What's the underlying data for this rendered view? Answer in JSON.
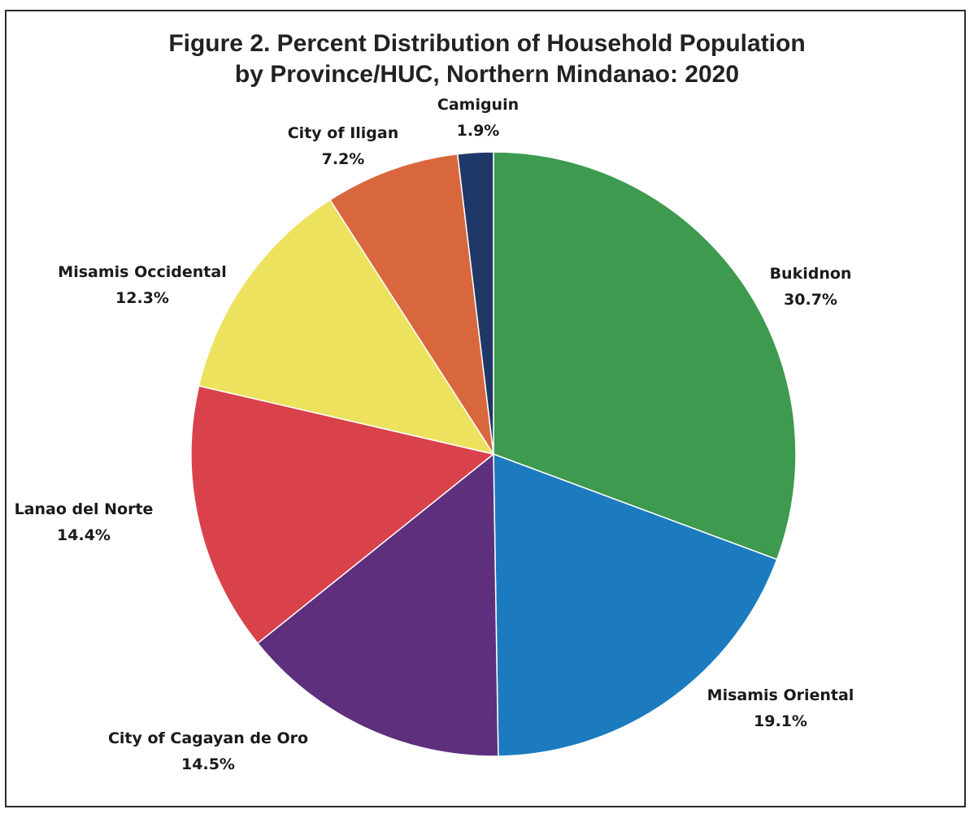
{
  "chart_data": {
    "type": "pie",
    "title_line1": "Figure 2. Percent Distribution of Household Population",
    "title_line2": "by Province/HUC, Northern Mindanao: 2020",
    "slices": [
      {
        "label": "Bukidnon",
        "value": 30.7,
        "display": "30.7%",
        "color": "#3d9a4e"
      },
      {
        "label": "Misamis Oriental",
        "value": 19.1,
        "display": "19.1%",
        "color": "#1c7bbf"
      },
      {
        "label": "City of Cagayan de Oro",
        "value": 14.5,
        "display": "14.5%",
        "color": "#5e2f7d"
      },
      {
        "label": "Lanao del Norte",
        "value": 14.4,
        "display": "14.4%",
        "color": "#d9424a"
      },
      {
        "label": "Misamis Occidental",
        "value": 12.3,
        "display": "12.3%",
        "color": "#ece25e"
      },
      {
        "label": "City of Iligan",
        "value": 7.2,
        "display": "7.2%",
        "color": "#d8673e"
      },
      {
        "label": "Camiguin",
        "value": 1.9,
        "display": "1.9%",
        "color": "#1f3867"
      }
    ],
    "start": "12 o'clock",
    "direction": "clockwise",
    "legend": "none"
  }
}
